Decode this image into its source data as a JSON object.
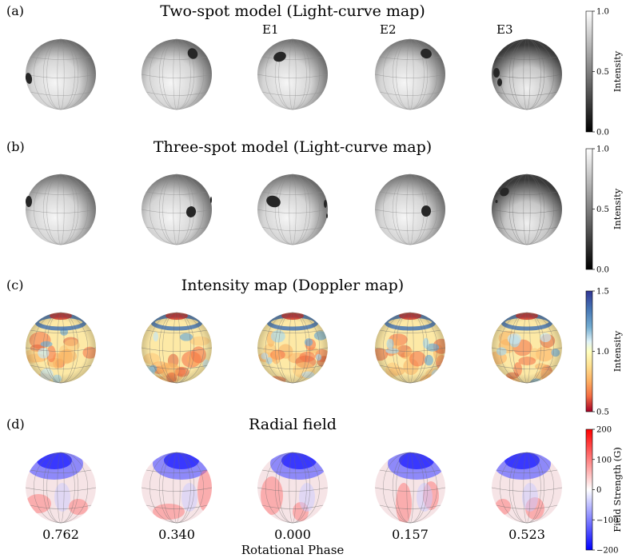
{
  "panels": [
    {
      "letter": "(a)",
      "title": "Two-spot model (Light-curve map)",
      "kind": "grey",
      "colorbar": {
        "label": "Intensity",
        "ticks": [
          "1.0",
          "0.5",
          "0.0"
        ],
        "scale": "grey"
      }
    },
    {
      "letter": "(b)",
      "title": "Three-spot model (Light-curve map)",
      "kind": "grey",
      "colorbar": {
        "label": "Intensity",
        "ticks": [
          "1.0",
          "0.5",
          "0.0"
        ],
        "scale": "grey"
      }
    },
    {
      "letter": "(c)",
      "title": "Intensity map (Doppler map)",
      "kind": "doppler",
      "colorbar": {
        "label": "Intensity",
        "ticks": [
          "1.5",
          "1.0",
          "0.5"
        ],
        "scale": "RdYlBu"
      }
    },
    {
      "letter": "(d)",
      "title": "Radial field",
      "kind": "field",
      "colorbar": {
        "label": "Field Strength (G)",
        "ticks": [
          "200",
          "100",
          "0",
          "−100",
          "−200"
        ],
        "scale": "bwr"
      }
    }
  ],
  "epoch_labels": [
    "E1",
    "E2",
    "E3"
  ],
  "phases": [
    "0.762",
    "0.340",
    "0.000",
    "0.157",
    "0.523"
  ],
  "xlabel": "Rotational Phase",
  "colors": {
    "spot": "#262626",
    "cbar_blue": "#1f3f8f",
    "cbar_red": "#b40426",
    "field_blue": "#1010ff",
    "field_red": "#ff1010"
  }
}
